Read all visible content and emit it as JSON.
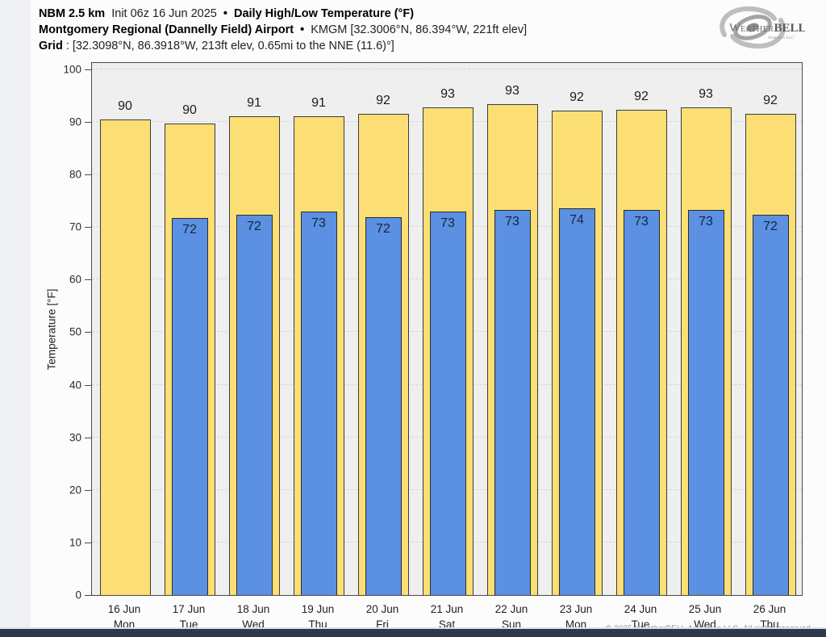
{
  "header": {
    "model_bold": "NBM 2.5 km",
    "init_text": "Init 06z 16 Jun 2025",
    "bullet": "•",
    "product_bold": "Daily High/Low Temperature (°F)",
    "station_bold": "Montgomery Regional (Dannelly Field) Airport",
    "station_meta": "KMGM [32.3006°N, 86.394°W, 221ft elev]",
    "grid_bold": "Grid",
    "grid_meta": ": [32.3098°N, 86.3918°W, 213ft elev, 0.65mi to the NNE (11.6)°]"
  },
  "logo": {
    "w": "W",
    "eather": "EATHER",
    "bell": "BELL",
    "subtitle": "Analytics LLC"
  },
  "chart_data": {
    "type": "bar",
    "title": "NBM 2.5 km Daily High/Low Temperature (°F) — Montgomery Regional (Dannelly Field) Airport",
    "xlabel": "",
    "ylabel": "Temperature [°F]",
    "ylim": [
      0,
      101.2
    ],
    "yticks": [
      0,
      10,
      20,
      30,
      40,
      50,
      60,
      70,
      80,
      90,
      100
    ],
    "grid": "horizontal dashed",
    "legend": "none",
    "plot_bg": "#efefef",
    "categories": [
      {
        "date": "16 Jun",
        "day": "Mon"
      },
      {
        "date": "17 Jun",
        "day": "Tue"
      },
      {
        "date": "18 Jun",
        "day": "Wed"
      },
      {
        "date": "19 Jun",
        "day": "Thu"
      },
      {
        "date": "20 Jun",
        "day": "Fri"
      },
      {
        "date": "21 Jun",
        "day": "Sat"
      },
      {
        "date": "22 Jun",
        "day": "Sun"
      },
      {
        "date": "23 Jun",
        "day": "Mon"
      },
      {
        "date": "24 Jun",
        "day": "Tue"
      },
      {
        "date": "25 Jun",
        "day": "Wed"
      },
      {
        "date": "26 Jun",
        "day": "Thu"
      }
    ],
    "series": [
      {
        "name": "Daily High",
        "color": "#fbdf74",
        "labels": [
          "90",
          "90",
          "91",
          "91",
          "92",
          "93",
          "93",
          "92",
          "92",
          "93",
          "92"
        ],
        "values": [
          90.4,
          89.7,
          91.1,
          91.1,
          91.5,
          92.8,
          93.4,
          92.2,
          92.3,
          92.8,
          91.5
        ]
      },
      {
        "name": "Daily Low",
        "color": "#5b90e2",
        "labels": [
          null,
          "72",
          "72",
          "73",
          "72",
          "73",
          "73",
          "74",
          "73",
          "73",
          "72"
        ],
        "values": [
          null,
          71.7,
          72.3,
          73.0,
          71.8,
          73.0,
          73.2,
          73.6,
          73.2,
          73.2,
          72.3
        ]
      }
    ]
  },
  "footer": {
    "copyright": "© 2025 WeatherBELL Analytics LLC. All rights reserved."
  }
}
